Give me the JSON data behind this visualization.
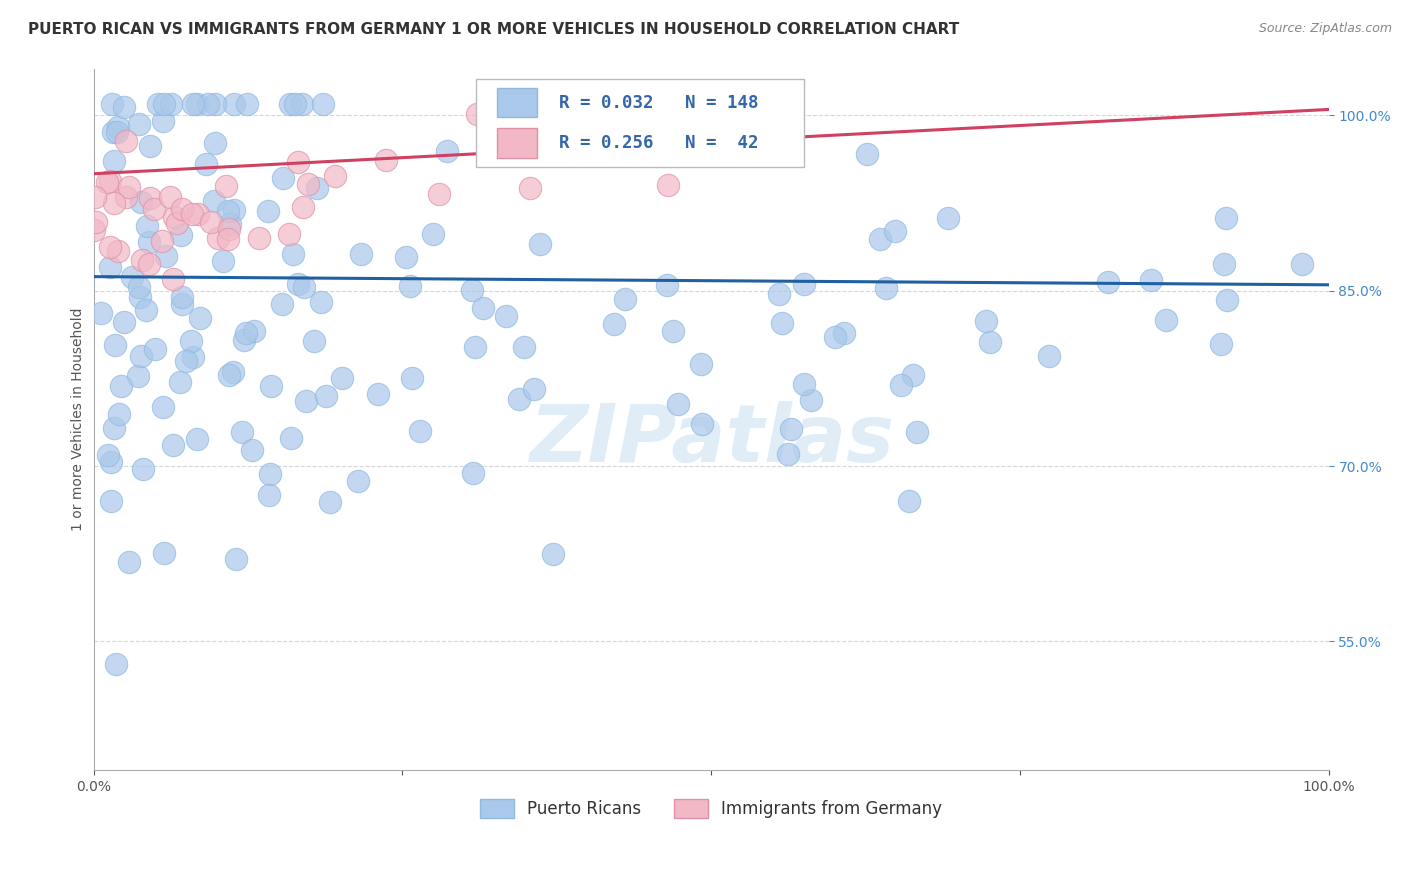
{
  "title": "PUERTO RICAN VS IMMIGRANTS FROM GERMANY 1 OR MORE VEHICLES IN HOUSEHOLD CORRELATION CHART",
  "source": "Source: ZipAtlas.com",
  "ylabel": "1 or more Vehicles in Household",
  "watermark": "ZIPatlas",
  "legend_blue_label": "Puerto Ricans",
  "legend_pink_label": "Immigrants from Germany",
  "blue_R": 0.032,
  "blue_N": 148,
  "pink_R": 0.256,
  "pink_N": 42,
  "xlim": [
    0,
    1
  ],
  "ylim": [
    0.44,
    1.04
  ],
  "yticks": [
    0.55,
    0.7,
    0.85,
    1.0
  ],
  "ytick_labels": [
    "55.0%",
    "70.0%",
    "85.0%",
    "100.0%"
  ],
  "xticks": [
    0.0,
    0.25,
    0.5,
    0.75,
    1.0
  ],
  "xtick_labels": [
    "0.0%",
    "",
    "",
    "",
    "100.0%"
  ],
  "blue_color": "#aac8ea",
  "blue_edge_color": "#90b8e0",
  "blue_line_color": "#2060a0",
  "pink_color": "#f2b8c6",
  "pink_edge_color": "#e090a8",
  "pink_line_color": "#d04060",
  "background_color": "#ffffff",
  "grid_color": "#cccccc",
  "title_fontsize": 11,
  "axis_label_fontsize": 10,
  "tick_fontsize": 10,
  "legend_fontsize": 12,
  "source_fontsize": 9,
  "blue_line_y0": 0.862,
  "blue_line_y1": 0.855,
  "pink_line_y0": 0.95,
  "pink_line_y1": 1.005
}
